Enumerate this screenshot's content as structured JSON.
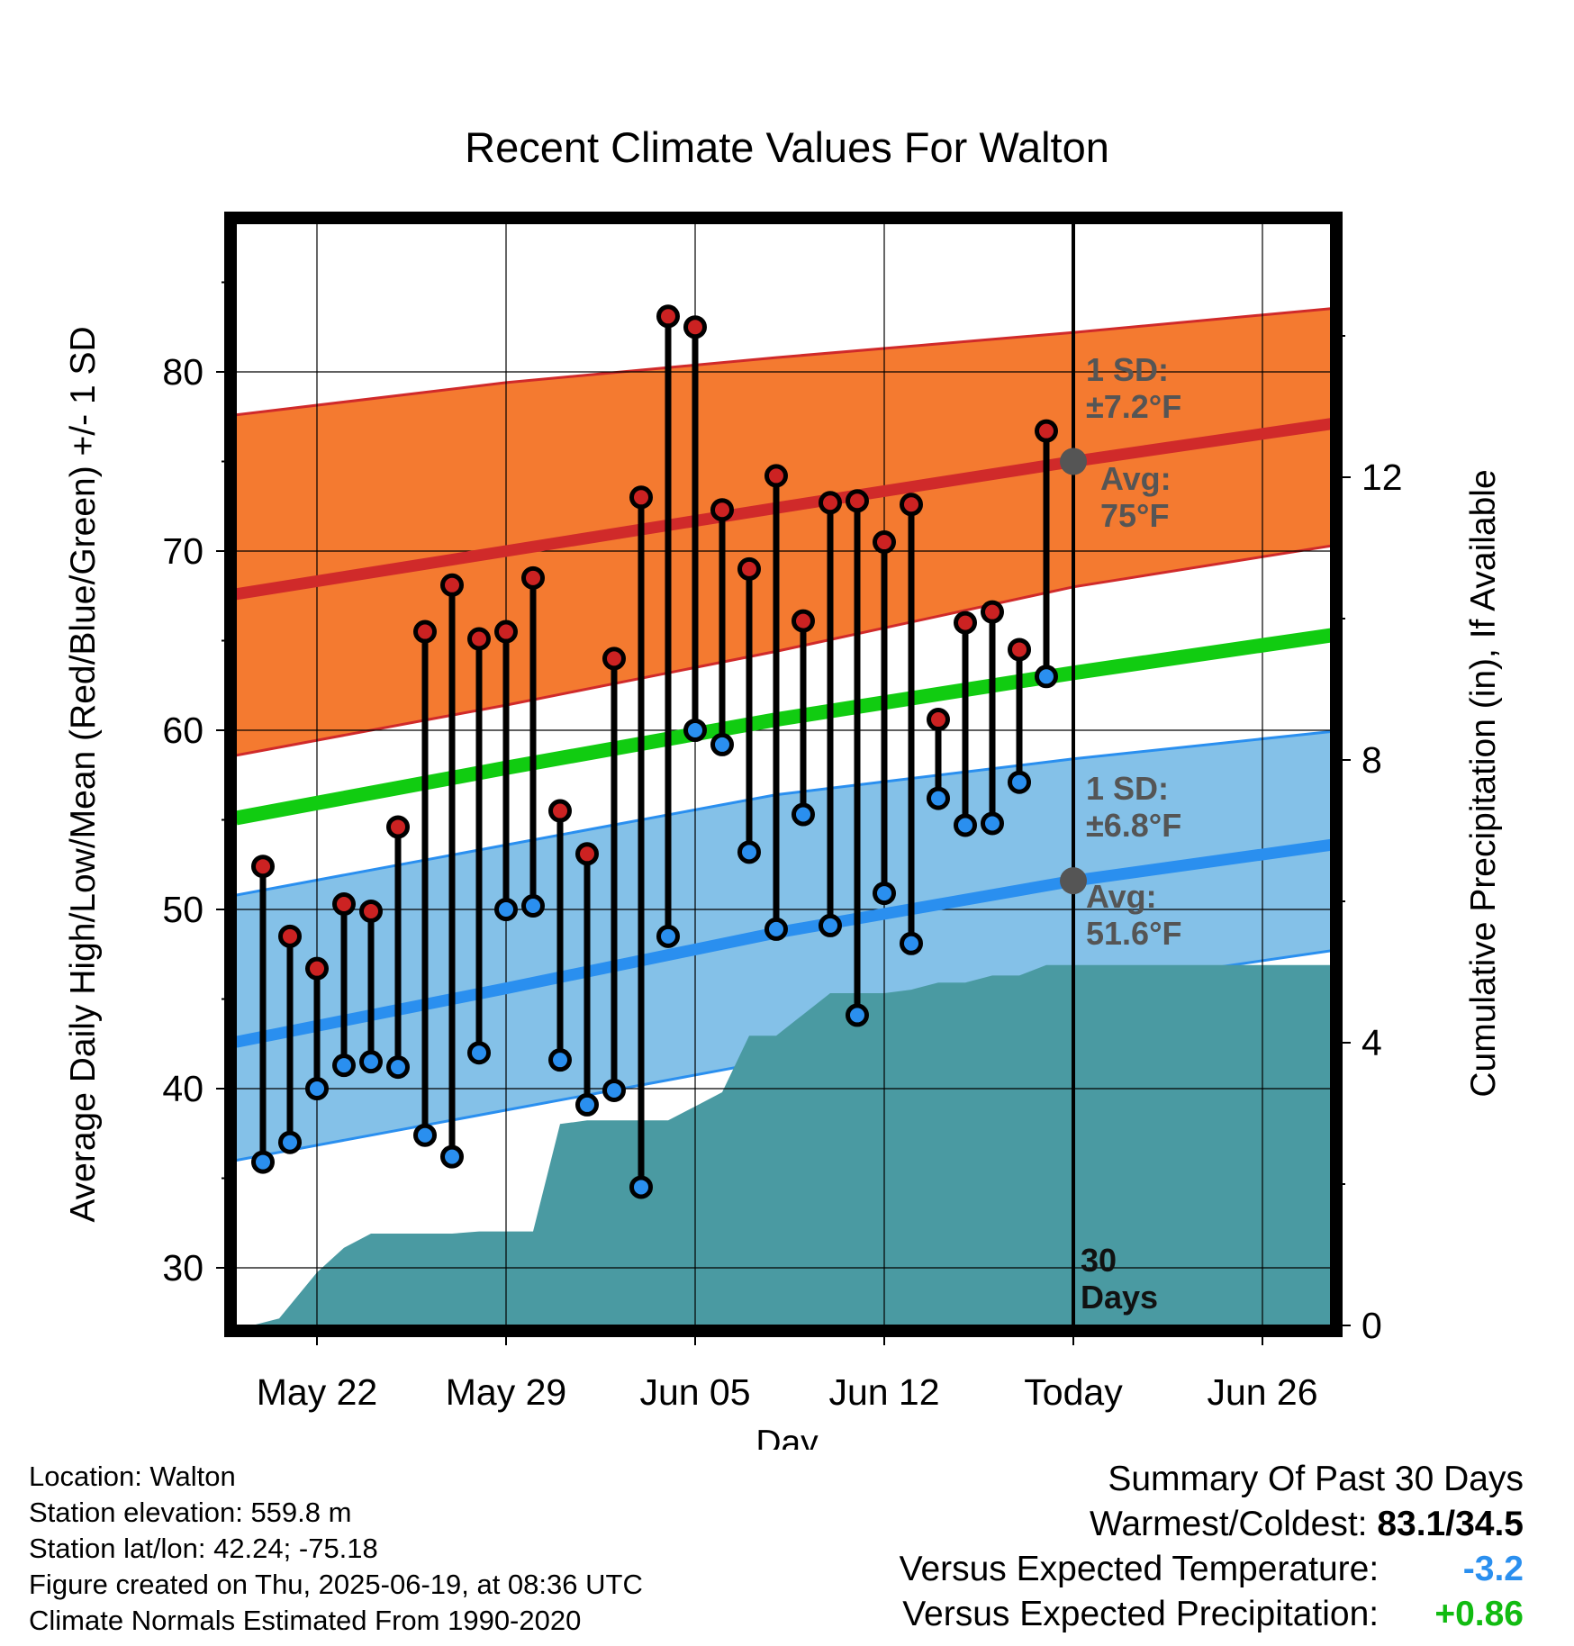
{
  "chart_data": {
    "type": "line",
    "title": "Recent Climate Values For Walton",
    "xlabel": "Day",
    "ylabel": "Average Daily High/Low/Mean (Red/Blue/Green) +/- 1 SD",
    "ylabel_right": "Cumulative Precipitation (in), If Available",
    "x_tick_labels": [
      "May 22",
      "May 29",
      "Jun 05",
      "Jun 12",
      "Today",
      "Jun 26"
    ],
    "x_tick_days": [
      3,
      10,
      17,
      24,
      31,
      38
    ],
    "xlim_days": [
      0,
      41
    ],
    "ylim": [
      27,
      89
    ],
    "y_ticks": [
      30,
      40,
      50,
      60,
      70,
      80
    ],
    "y2lim": [
      0,
      17.8
    ],
    "y2_ticks": [
      0,
      4,
      8,
      12
    ],
    "y2_tick_labels": [
      "0",
      "4",
      "8",
      "12"
    ],
    "today_day": 31,
    "window_label": "30\nDays",
    "grid": true,
    "colors": {
      "high_band": "#f47a30",
      "high_line": "#d02a2a",
      "low_band": "#84c1e8",
      "low_line": "#2a8fef",
      "mean_line": "#11cc11",
      "precip": "#4a9aa2",
      "high_marker": "#cc2222",
      "low_marker": "#2a8fef",
      "annotation": "#555555",
      "temp_anomaly": "#2a8fef",
      "precip_anomaly": "#11bb11"
    },
    "normal_high": {
      "day": [
        0,
        10,
        20,
        31,
        41
      ],
      "values": [
        67.6,
        70.0,
        72.4,
        75.0,
        77.2
      ]
    },
    "normal_high_sd_upper": {
      "day": [
        0,
        10,
        20,
        31,
        41
      ],
      "values": [
        77.6,
        79.4,
        80.8,
        82.2,
        83.6
      ]
    },
    "normal_high_sd_lower": {
      "day": [
        0,
        10,
        20,
        31,
        41
      ],
      "values": [
        58.6,
        61.4,
        64.4,
        68.0,
        70.4
      ]
    },
    "normal_mean": {
      "day": [
        0,
        10,
        20,
        31,
        41
      ],
      "values": [
        55.1,
        57.9,
        60.6,
        63.2,
        65.4
      ]
    },
    "normal_low": {
      "day": [
        0,
        10,
        20,
        31,
        41
      ],
      "values": [
        42.6,
        45.6,
        48.7,
        51.6,
        53.7
      ]
    },
    "normal_low_sd_upper": {
      "day": [
        0,
        10,
        20,
        31,
        41
      ],
      "values": [
        50.8,
        53.6,
        56.4,
        58.4,
        60.0
      ]
    },
    "normal_low_sd_lower": {
      "day": [
        0,
        10,
        20,
        31,
        41
      ],
      "values": [
        36.0,
        38.8,
        41.6,
        45.6,
        47.8
      ]
    },
    "observed": {
      "day": [
        1,
        2,
        3,
        4,
        5,
        6,
        7,
        8,
        9,
        10,
        11,
        12,
        13,
        14,
        15,
        16,
        17,
        18,
        19,
        20,
        21,
        22,
        23,
        24,
        25,
        26,
        27,
        28,
        29,
        30
      ],
      "high": [
        52.4,
        48.5,
        46.7,
        50.3,
        49.9,
        54.6,
        65.5,
        68.1,
        65.1,
        65.5,
        68.5,
        55.5,
        53.1,
        64.0,
        73.0,
        83.1,
        82.5,
        72.3,
        69.0,
        74.2,
        66.1,
        72.7,
        72.8,
        70.5,
        72.6,
        60.6,
        66.0,
        66.6,
        64.5,
        76.7
      ],
      "low": [
        35.9,
        37.0,
        40.0,
        41.3,
        41.5,
        41.2,
        37.4,
        36.2,
        42.0,
        50.0,
        50.2,
        41.6,
        39.1,
        39.9,
        34.5,
        48.5,
        60.0,
        59.2,
        53.2,
        48.9,
        55.3,
        49.1,
        44.1,
        50.9,
        48.1,
        56.2,
        54.7,
        54.8,
        57.1,
        63.0
      ]
    },
    "precip_cum": {
      "day": [
        0.6,
        1.6,
        3.0,
        4.0,
        5.0,
        6.0,
        7.0,
        8.0,
        9.0,
        10.0,
        11.0,
        12.0,
        13.0,
        14.0,
        15.0,
        16.0,
        17.0,
        18.0,
        19.0,
        20.0,
        21.0,
        22.0,
        23.0,
        24.0,
        25.0,
        26.0,
        27.0,
        28.0,
        29.0,
        30.0,
        31.0,
        41.0
      ],
      "values": [
        0,
        0.1,
        0.75,
        1.1,
        1.3,
        1.3,
        1.3,
        1.3,
        1.33,
        1.33,
        1.33,
        2.85,
        2.9,
        2.9,
        2.9,
        2.9,
        3.1,
        3.3,
        4.1,
        4.1,
        4.4,
        4.7,
        4.7,
        4.7,
        4.75,
        4.85,
        4.85,
        4.95,
        4.95,
        5.1,
        5.1,
        5.1
      ]
    },
    "annotations": {
      "high_sd": "1 SD:\n±7.2°F",
      "high_avg": "Avg:\n75°F",
      "low_sd": "1 SD:\n±6.8°F",
      "low_avg": "Avg:\n51.6°F"
    }
  },
  "info": {
    "location": "Location: Walton",
    "elevation": "Station elevation: 559.8 m",
    "latlon": "Station lat/lon: 42.24; -75.18",
    "created": "Figure created on Thu, 2025-06-19, at 08:36 UTC",
    "normals": "Climate Normals Estimated From 1990-2020"
  },
  "summary": {
    "heading": "Summary Of Past 30 Days",
    "warmest_coldest_label": "Warmest/Coldest:",
    "warmest_coldest_value": "83.1/34.5",
    "temp_label": "Versus Expected Temperature:",
    "temp_value": "-3.2",
    "precip_label": "Versus Expected Precipitation:",
    "precip_value": "+0.86"
  }
}
